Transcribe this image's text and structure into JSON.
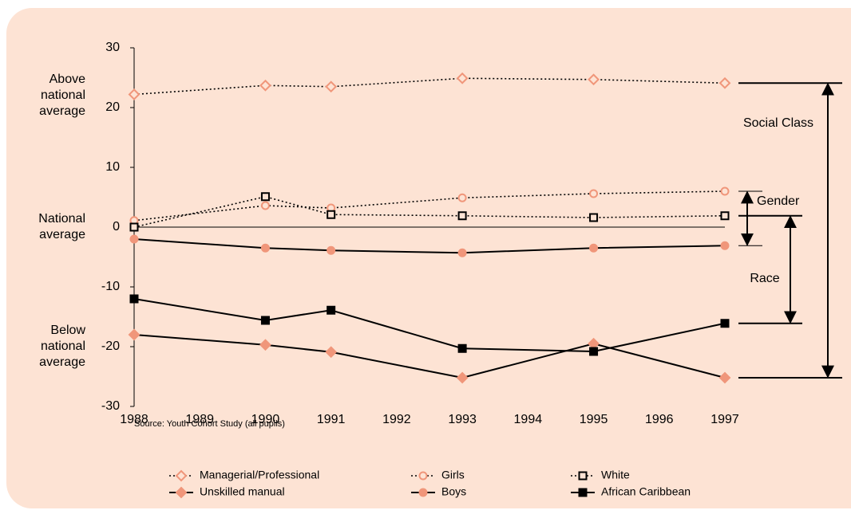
{
  "chart_data": {
    "type": "line",
    "x": [
      1988,
      1990,
      1991,
      1993,
      1995,
      1997
    ],
    "xlim": [
      1988,
      1997
    ],
    "xticks": [
      1988,
      1989,
      1990,
      1991,
      1992,
      1993,
      1994,
      1995,
      1996,
      1997
    ],
    "ylim": [
      -30,
      30
    ],
    "yticks": [
      -30,
      -20,
      -10,
      0,
      10,
      20,
      30
    ],
    "grid": false,
    "y_annotations": [
      {
        "value": 22,
        "lines": [
          "Above",
          "national",
          "average"
        ]
      },
      {
        "value": 0,
        "lines": [
          "National",
          "average"
        ]
      },
      {
        "value": -20,
        "lines": [
          "Below",
          "national",
          "average"
        ]
      }
    ],
    "brackets": [
      "Social Class",
      "Gender",
      "Race"
    ],
    "source": "Source: Youth Cohort Study (all pupils)",
    "series": [
      {
        "name": "Managerial/Professional",
        "color": "#f0967a",
        "marker": "diamond",
        "filled": false,
        "dash": "dotted",
        "values": [
          22.2,
          23.7,
          23.5,
          24.9,
          24.7,
          24.1
        ]
      },
      {
        "name": "Girls",
        "color": "#f0967a",
        "marker": "circle",
        "filled": false,
        "dash": "dotted",
        "values": [
          1.1,
          3.6,
          3.2,
          4.9,
          5.6,
          6.0
        ]
      },
      {
        "name": "White",
        "color": "#000000",
        "marker": "square",
        "filled": false,
        "dash": "dotted",
        "values": [
          0,
          5.1,
          2.1,
          1.9,
          1.6,
          1.9
        ]
      },
      {
        "name": "Unskilled manual",
        "color": "#f0967a",
        "marker": "diamond",
        "filled": true,
        "dash": "solid",
        "values": [
          -18,
          -19.7,
          -20.9,
          -25.2,
          -19.5,
          -25.2
        ]
      },
      {
        "name": "Boys",
        "color": "#f0967a",
        "marker": "circle",
        "filled": true,
        "dash": "solid",
        "values": [
          -2,
          -3.5,
          -3.9,
          -4.3,
          -3.5,
          -3.1
        ]
      },
      {
        "name": "African Caribbean",
        "color": "#000000",
        "marker": "square",
        "filled": true,
        "dash": "solid",
        "values": [
          -12,
          -15.6,
          -13.9,
          -20.3,
          -20.8,
          -16.1
        ]
      }
    ]
  }
}
